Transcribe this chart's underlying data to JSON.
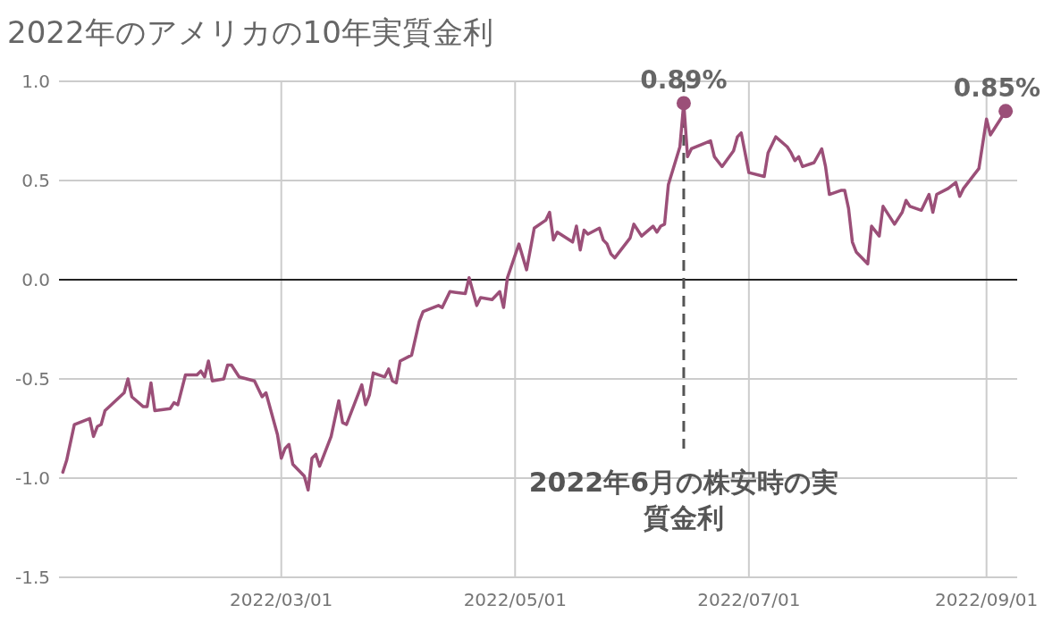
{
  "chart_data": {
    "type": "line",
    "title": "2022年のアメリカの10年実質金利",
    "xlim": [
      "2022-01-02",
      "2022-09-09"
    ],
    "ylim": [
      -1.5,
      1.0
    ],
    "xticks": [
      {
        "value": "2022-03-01",
        "label": "2022/03/01"
      },
      {
        "value": "2022-05-01",
        "label": "2022/05/01"
      },
      {
        "value": "2022-07-01",
        "label": "2022/07/01"
      },
      {
        "value": "2022-09-01",
        "label": "2022/09/01"
      }
    ],
    "yticks": [
      {
        "value": 1.0,
        "label": "1.0"
      },
      {
        "value": 0.5,
        "label": "0.5"
      },
      {
        "value": 0,
        "label": "0.0"
      },
      {
        "value": -0.5,
        "label": "-0.5"
      },
      {
        "value": -1.0,
        "label": "-1.0"
      },
      {
        "value": -1.5,
        "label": "-1.5"
      }
    ],
    "grid": true,
    "x": [
      "2022-01-03",
      "2022-01-04",
      "2022-01-06",
      "2022-01-10",
      "2022-01-11",
      "2022-01-12",
      "2022-01-13",
      "2022-01-14",
      "2022-01-19",
      "2022-01-20",
      "2022-01-21",
      "2022-01-24",
      "2022-01-25",
      "2022-01-26",
      "2022-01-27",
      "2022-01-31",
      "2022-02-01",
      "2022-02-02",
      "2022-02-04",
      "2022-02-07",
      "2022-02-08",
      "2022-02-09",
      "2022-02-10",
      "2022-02-11",
      "2022-02-14",
      "2022-02-15",
      "2022-02-16",
      "2022-02-18",
      "2022-02-22",
      "2022-02-24",
      "2022-02-25",
      "2022-02-28",
      "2022-03-01",
      "2022-03-02",
      "2022-03-03",
      "2022-03-04",
      "2022-03-07",
      "2022-03-08",
      "2022-03-09",
      "2022-03-10",
      "2022-03-11",
      "2022-03-14",
      "2022-03-16",
      "2022-03-17",
      "2022-03-18",
      "2022-03-22",
      "2022-03-23",
      "2022-03-24",
      "2022-03-25",
      "2022-03-28",
      "2022-03-29",
      "2022-03-30",
      "2022-03-31",
      "2022-04-01",
      "2022-04-04",
      "2022-04-06",
      "2022-04-07",
      "2022-04-11",
      "2022-04-12",
      "2022-04-14",
      "2022-04-18",
      "2022-04-19",
      "2022-04-21",
      "2022-04-22",
      "2022-04-25",
      "2022-04-27",
      "2022-04-28",
      "2022-04-29",
      "2022-05-02",
      "2022-05-04",
      "2022-05-06",
      "2022-05-09",
      "2022-05-10",
      "2022-05-11",
      "2022-05-12",
      "2022-05-16",
      "2022-05-17",
      "2022-05-18",
      "2022-05-19",
      "2022-05-20",
      "2022-05-23",
      "2022-05-24",
      "2022-05-25",
      "2022-05-26",
      "2022-05-27",
      "2022-05-31",
      "2022-06-01",
      "2022-06-03",
      "2022-06-06",
      "2022-06-07",
      "2022-06-08",
      "2022-06-09",
      "2022-06-10",
      "2022-06-13",
      "2022-06-14",
      "2022-06-15",
      "2022-06-16",
      "2022-06-21",
      "2022-06-22",
      "2022-06-24",
      "2022-06-27",
      "2022-06-28",
      "2022-06-29",
      "2022-07-01",
      "2022-07-05",
      "2022-07-06",
      "2022-07-08",
      "2022-07-11",
      "2022-07-12",
      "2022-07-13",
      "2022-07-14",
      "2022-07-15",
      "2022-07-18",
      "2022-07-20",
      "2022-07-21",
      "2022-07-22",
      "2022-07-25",
      "2022-07-26",
      "2022-07-27",
      "2022-07-28",
      "2022-07-29",
      "2022-08-01",
      "2022-08-02",
      "2022-08-04",
      "2022-08-05",
      "2022-08-08",
      "2022-08-10",
      "2022-08-11",
      "2022-08-12",
      "2022-08-15",
      "2022-08-17",
      "2022-08-18",
      "2022-08-19",
      "2022-08-22",
      "2022-08-24",
      "2022-08-25",
      "2022-08-26",
      "2022-08-30",
      "2022-09-01",
      "2022-09-02",
      "2022-09-06"
    ],
    "series": [
      {
        "color": "#9b4f78",
        "values": [
          -0.97,
          -0.91,
          -0.73,
          -0.7,
          -0.79,
          -0.74,
          -0.73,
          -0.66,
          -0.57,
          -0.5,
          -0.59,
          -0.64,
          -0.64,
          -0.52,
          -0.66,
          -0.65,
          -0.62,
          -0.63,
          -0.48,
          -0.48,
          -0.46,
          -0.49,
          -0.41,
          -0.51,
          -0.5,
          -0.43,
          -0.43,
          -0.49,
          -0.51,
          -0.59,
          -0.57,
          -0.78,
          -0.9,
          -0.85,
          -0.83,
          -0.93,
          -0.99,
          -1.06,
          -0.9,
          -0.88,
          -0.94,
          -0.79,
          -0.61,
          -0.72,
          -0.73,
          -0.53,
          -0.63,
          -0.58,
          -0.47,
          -0.49,
          -0.45,
          -0.51,
          -0.52,
          -0.41,
          -0.38,
          -0.21,
          -0.16,
          -0.13,
          -0.14,
          -0.06,
          -0.07,
          0.01,
          -0.13,
          -0.09,
          -0.1,
          -0.06,
          -0.14,
          0.01,
          0.18,
          0.05,
          0.26,
          0.3,
          0.34,
          0.2,
          0.24,
          0.19,
          0.27,
          0.15,
          0.25,
          0.23,
          0.26,
          0.2,
          0.18,
          0.13,
          0.11,
          0.21,
          0.28,
          0.22,
          0.27,
          0.24,
          0.27,
          0.28,
          0.48,
          0.67,
          0.89,
          0.62,
          0.66,
          0.7,
          0.62,
          0.57,
          0.65,
          0.72,
          0.74,
          0.54,
          0.52,
          0.64,
          0.72,
          0.67,
          0.64,
          0.6,
          0.62,
          0.57,
          0.59,
          0.66,
          0.57,
          0.43,
          0.45,
          0.45,
          0.36,
          0.19,
          0.14,
          0.08,
          0.27,
          0.22,
          0.37,
          0.28,
          0.34,
          0.4,
          0.37,
          0.35,
          0.43,
          0.34,
          0.43,
          0.46,
          0.49,
          0.42,
          0.46,
          0.56,
          0.81,
          0.73,
          0.85
        ]
      }
    ],
    "annotations": [
      {
        "text": "0.89%",
        "x": "2022-06-14",
        "y": 0.89
      },
      {
        "text": "0.85%",
        "x": "2022-09-06",
        "y": 0.85
      }
    ],
    "ref_lines": [
      {
        "axis": "y",
        "value": 0,
        "color": "#222222",
        "line_style": "solid"
      },
      {
        "axis": "x",
        "value": "2022-06-14",
        "label": "2022年6月の株安時の実質金利",
        "color": "#555555",
        "line_style": "dashed"
      }
    ]
  }
}
